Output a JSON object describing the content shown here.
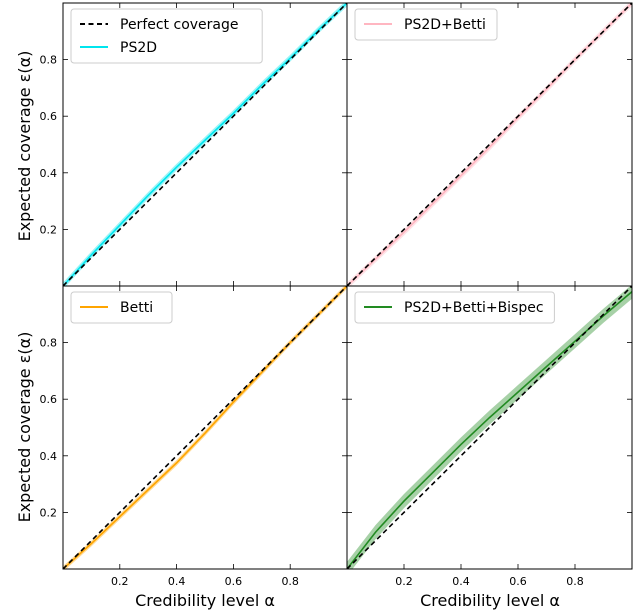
{
  "figure": {
    "xlabel": "Credibility level α",
    "ylabel": "Expected coverage ε(α)"
  },
  "chart_data": [
    {
      "type": "line",
      "panel": "top-left",
      "xlim": [
        0,
        1
      ],
      "ylim": [
        0,
        1
      ],
      "xticks": [
        0.2,
        0.4,
        0.6,
        0.8
      ],
      "yticks": [
        0.2,
        0.4,
        0.6,
        0.8
      ],
      "xtick_labels": [
        "",
        "",
        "",
        ""
      ],
      "ytick_labels": [
        "0.2",
        "0.4",
        "0.6",
        "0.8"
      ],
      "legend_position": "upper-left",
      "series": [
        {
          "name": "Perfect coverage",
          "style": "dashed",
          "color": "#000000",
          "x": [
            0,
            1
          ],
          "y": [
            0,
            1
          ],
          "band": 0
        },
        {
          "name": "PS2D",
          "color": "#00e5ee",
          "x": [
            0,
            0.1,
            0.2,
            0.3,
            0.4,
            0.5,
            0.6,
            0.7,
            0.8,
            0.9,
            1.0
          ],
          "y": [
            0,
            0.11,
            0.215,
            0.32,
            0.42,
            0.515,
            0.61,
            0.71,
            0.805,
            0.905,
            1.0
          ],
          "band": 0.012
        }
      ]
    },
    {
      "type": "line",
      "panel": "top-right",
      "xlim": [
        0,
        1
      ],
      "ylim": [
        0,
        1
      ],
      "xticks": [
        0.2,
        0.4,
        0.6,
        0.8
      ],
      "yticks": [
        0.2,
        0.4,
        0.6,
        0.8
      ],
      "xtick_labels": [
        "",
        "",
        "",
        ""
      ],
      "ytick_labels": [
        "",
        "",
        "",
        ""
      ],
      "legend_position": "upper-left",
      "series": [
        {
          "name": "Perfect coverage",
          "style": "dashed",
          "color": "#000000",
          "x": [
            0,
            1
          ],
          "y": [
            0,
            1
          ],
          "band": 0,
          "legend": false
        },
        {
          "name": "PS2D+Betti",
          "color": "#ffb6c1",
          "x": [
            0,
            0.1,
            0.2,
            0.3,
            0.4,
            0.5,
            0.6,
            0.7,
            0.8,
            0.9,
            1.0
          ],
          "y": [
            0,
            0.095,
            0.19,
            0.29,
            0.39,
            0.49,
            0.595,
            0.695,
            0.8,
            0.9,
            1.0
          ],
          "band": 0.012
        }
      ]
    },
    {
      "type": "line",
      "panel": "bottom-left",
      "xlim": [
        0,
        1
      ],
      "ylim": [
        0,
        1
      ],
      "xticks": [
        0.2,
        0.4,
        0.6,
        0.8
      ],
      "yticks": [
        0.2,
        0.4,
        0.6,
        0.8
      ],
      "xtick_labels": [
        "0.2",
        "0.4",
        "0.6",
        "0.8"
      ],
      "ytick_labels": [
        "0.2",
        "0.4",
        "0.6",
        "0.8"
      ],
      "legend_position": "upper-left",
      "series": [
        {
          "name": "Perfect coverage",
          "style": "dashed",
          "color": "#000000",
          "x": [
            0,
            1
          ],
          "y": [
            0,
            1
          ],
          "band": 0,
          "legend": false
        },
        {
          "name": "Betti",
          "color": "#ffa500",
          "x": [
            0,
            0.1,
            0.2,
            0.3,
            0.4,
            0.5,
            0.6,
            0.7,
            0.8,
            0.9,
            1.0
          ],
          "y": [
            0,
            0.09,
            0.185,
            0.28,
            0.375,
            0.48,
            0.59,
            0.695,
            0.8,
            0.9,
            1.0
          ],
          "band": 0.01
        }
      ]
    },
    {
      "type": "line",
      "panel": "bottom-right",
      "xlim": [
        0,
        1
      ],
      "ylim": [
        0,
        1
      ],
      "xticks": [
        0.2,
        0.4,
        0.6,
        0.8
      ],
      "yticks": [
        0.2,
        0.4,
        0.6,
        0.8
      ],
      "xtick_labels": [
        "0.2",
        "0.4",
        "0.6",
        "0.8"
      ],
      "ytick_labels": [
        "",
        "",
        "",
        ""
      ],
      "legend_position": "upper-left",
      "series": [
        {
          "name": "Perfect coverage",
          "style": "dashed",
          "color": "#000000",
          "x": [
            0,
            1
          ],
          "y": [
            0,
            1
          ],
          "band": 0,
          "legend": false
        },
        {
          "name": "PS2D+Betti+Bispec",
          "color": "#228b22",
          "x": [
            0,
            0.1,
            0.2,
            0.3,
            0.4,
            0.5,
            0.6,
            0.7,
            0.8,
            0.9,
            1.0
          ],
          "y": [
            0,
            0.13,
            0.24,
            0.34,
            0.44,
            0.535,
            0.625,
            0.715,
            0.805,
            0.895,
            0.98
          ],
          "band": 0.025
        }
      ]
    }
  ]
}
